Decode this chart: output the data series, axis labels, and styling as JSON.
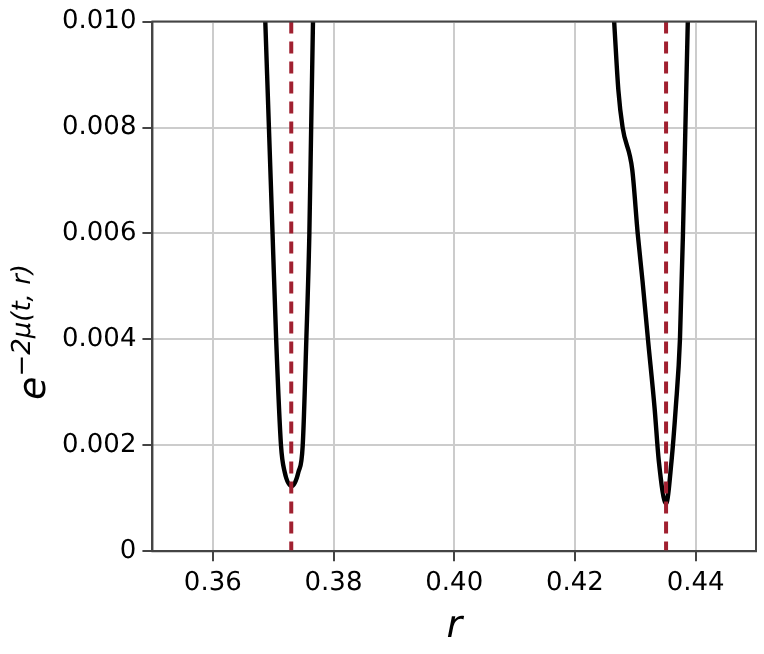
{
  "chart_data": {
    "type": "line",
    "xlabel": "r",
    "ylabel": "e$^{−2μ(t, r)}$",
    "xlim": [
      0.35,
      0.45
    ],
    "xticks": [
      0.36,
      0.38,
      {
        "value": 0.4,
        "label": "0.40"
      },
      0.42,
      0.44
    ],
    "ylim": [
      0,
      0.01
    ],
    "yticks": [
      0,
      0.002,
      0.004,
      0.006,
      0.008,
      {
        "value": 0.01,
        "label": "0.010"
      }
    ],
    "grid": true,
    "legend": false,
    "marker": "none",
    "line_style": "solid",
    "series": [
      {
        "color": "#000000",
        "x": [
          0.3687,
          0.3693,
          0.3699,
          0.3705,
          0.3713,
          0.3719,
          0.3731,
          0.3742,
          0.3749,
          0.3755,
          0.376,
          0.3763,
          0.3766
        ],
        "values": [
          0.01,
          0.008,
          0.006,
          0.004,
          0.002,
          0.0015,
          0.00123,
          0.0015,
          0.002,
          0.004,
          0.006,
          0.008,
          0.01
        ]
      },
      {
        "color": "#000000",
        "x": [
          0.4265,
          0.4272,
          0.4279,
          0.4295,
          0.4304,
          0.4312,
          0.4321,
          0.4332,
          0.4339,
          0.4351,
          0.436,
          0.4367,
          0.4374,
          0.4379,
          0.4383,
          0.4387
        ],
        "values": [
          0.01,
          0.0087,
          0.008,
          0.0072,
          0.006,
          0.0051,
          0.004,
          0.0027,
          0.0017,
          0.0009,
          0.0017,
          0.0027,
          0.004,
          0.006,
          0.008,
          0.01
        ]
      }
    ],
    "ref_lines": [
      {
        "axis": "x",
        "value": 0.373,
        "color": "#a02030",
        "line_style": "dashed"
      },
      {
        "axis": "x",
        "value": 0.4351,
        "color": "#a02030",
        "line_style": "dashed"
      }
    ]
  }
}
